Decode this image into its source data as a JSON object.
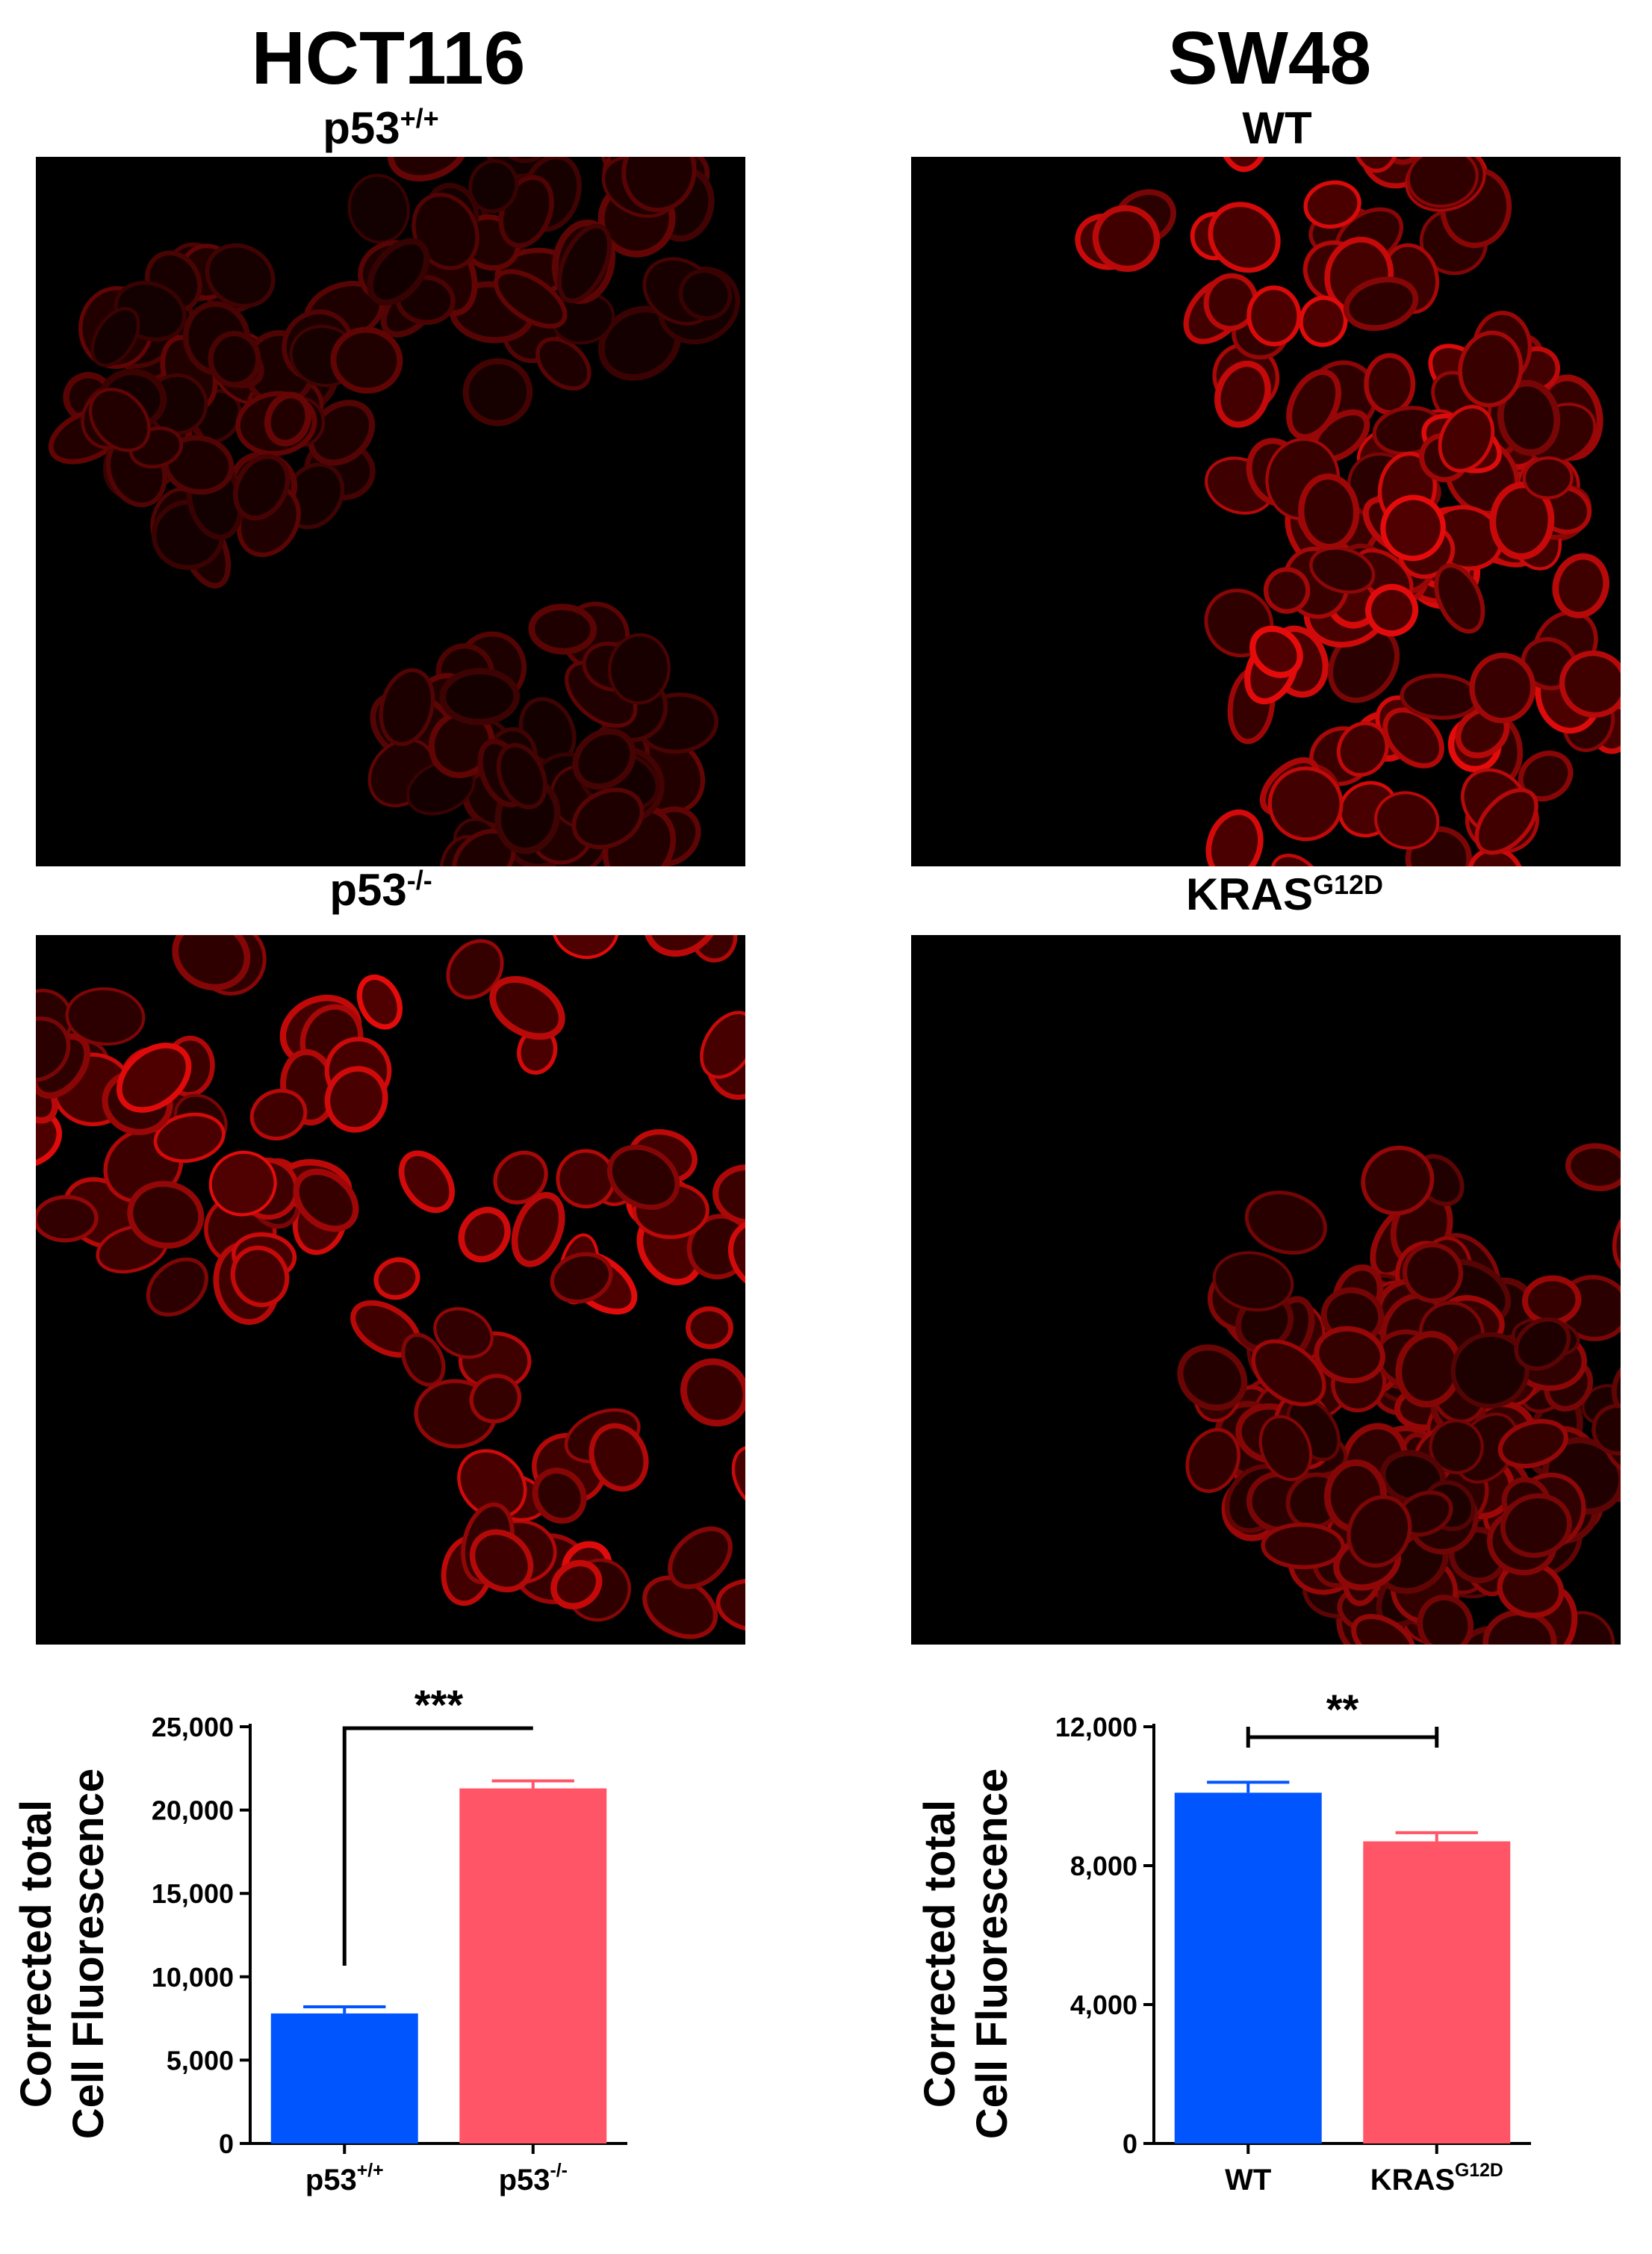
{
  "columns": [
    {
      "title": "HCT116",
      "panels": [
        {
          "label": {
            "base": "p53",
            "sup": "+/+"
          },
          "image": "red-fluorescence-micrograph-cells",
          "brightness": 0.45
        },
        {
          "label": {
            "base": "p53",
            "sup": "-/-"
          },
          "image": "red-fluorescence-micrograph-cells",
          "brightness": 1.0
        }
      ]
    },
    {
      "title": "SW48",
      "panels": [
        {
          "label": {
            "base": "WT",
            "sup": ""
          },
          "image": "red-fluorescence-micrograph-cells",
          "brightness": 1.0
        },
        {
          "label": {
            "base": "KRAS",
            "sup": "G12D"
          },
          "image": "red-fluorescence-micrograph-cells",
          "brightness": 0.7
        }
      ]
    }
  ],
  "chart_data": [
    {
      "type": "bar",
      "categories": [
        {
          "base": "p53",
          "sup": "+/+"
        },
        {
          "base": "p53",
          "sup": "-/-"
        }
      ],
      "values": [
        7800,
        21300
      ],
      "errors": [
        400,
        450
      ],
      "colors": [
        "#0055ff",
        "#ff5566"
      ],
      "ylabel": [
        "Corrected total",
        "Cell Fluorescence"
      ],
      "ylim": [
        0,
        25000
      ],
      "yticks": [
        0,
        5000,
        10000,
        15000,
        20000,
        25000
      ],
      "ytick_labels": [
        "0",
        "5,000",
        "10,000",
        "15,000",
        "20,000",
        "25,000"
      ],
      "grid": false,
      "significance": {
        "label": "***",
        "style": "bracket-open"
      }
    },
    {
      "type": "bar",
      "categories": [
        {
          "base": "WT",
          "sup": ""
        },
        {
          "base": "KRAS",
          "sup": "G12D"
        }
      ],
      "values": [
        10100,
        8700
      ],
      "errors": [
        300,
        250
      ],
      "colors": [
        "#0055ff",
        "#ff5566"
      ],
      "ylabel": [
        "Corrected total",
        "Cell Fluorescence"
      ],
      "ylim": [
        0,
        12000
      ],
      "yticks": [
        0,
        4000,
        8000,
        12000
      ],
      "ytick_labels": [
        "0",
        "4,000",
        "8,000",
        "12,000"
      ],
      "grid": false,
      "significance": {
        "label": "**",
        "style": "bracket-flat"
      }
    }
  ]
}
